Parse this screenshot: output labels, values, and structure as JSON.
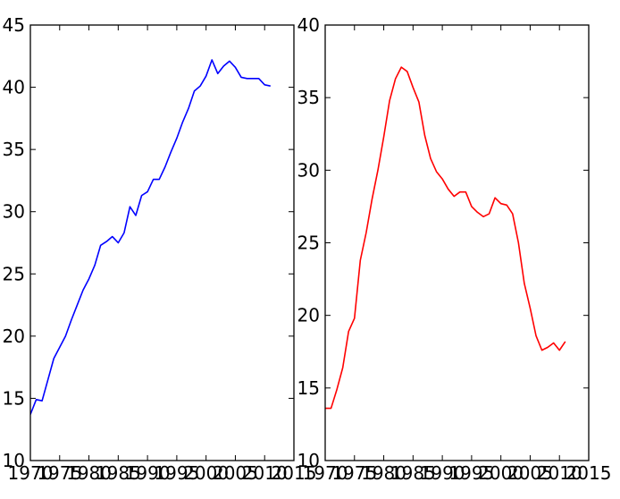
{
  "chart_data": [
    {
      "type": "line",
      "title": "",
      "xlabel": "",
      "ylabel": "",
      "xlim": [
        1970,
        2015
      ],
      "ylim": [
        10,
        45
      ],
      "xticks": [
        1970,
        1975,
        1980,
        1985,
        1990,
        1995,
        2000,
        2005,
        2010,
        2015
      ],
      "yticks": [
        10,
        15,
        20,
        25,
        30,
        35,
        40,
        45
      ],
      "grid": false,
      "series": [
        {
          "color": "#0000ff",
          "x": [
            1970,
            1971,
            1972,
            1973,
            1974,
            1975,
            1976,
            1977,
            1978,
            1979,
            1980,
            1981,
            1982,
            1983,
            1984,
            1985,
            1986,
            1987,
            1988,
            1989,
            1990,
            1991,
            1992,
            1993,
            1994,
            1995,
            1996,
            1997,
            1998,
            1999,
            2000,
            2001,
            2002,
            2003,
            2004,
            2005,
            2006,
            2007,
            2008,
            2009,
            2010,
            2011
          ],
          "y": [
            13.7,
            14.9,
            14.8,
            16.5,
            18.2,
            19.1,
            20.0,
            21.3,
            22.5,
            23.7,
            24.6,
            25.7,
            27.3,
            27.6,
            28.0,
            27.5,
            28.3,
            30.4,
            29.7,
            31.3,
            31.6,
            32.6,
            32.6,
            33.6,
            34.8,
            35.9,
            37.2,
            38.3,
            39.7,
            40.1,
            40.9,
            42.2,
            41.1,
            41.7,
            42.1,
            41.6,
            40.8,
            40.7,
            40.7,
            40.7,
            40.2,
            40.1
          ]
        }
      ]
    },
    {
      "type": "line",
      "title": "",
      "xlabel": "",
      "ylabel": "",
      "xlim": [
        1970,
        2015
      ],
      "ylim": [
        10,
        40
      ],
      "xticks": [
        1970,
        1975,
        1980,
        1985,
        1990,
        1995,
        2000,
        2005,
        2010,
        2015
      ],
      "yticks": [
        10,
        15,
        20,
        25,
        30,
        35,
        40
      ],
      "grid": false,
      "series": [
        {
          "color": "#ff0000",
          "x": [
            1970,
            1971,
            1972,
            1973,
            1974,
            1975,
            1976,
            1977,
            1978,
            1979,
            1980,
            1981,
            1982,
            1983,
            1984,
            1985,
            1986,
            1987,
            1988,
            1989,
            1990,
            1991,
            1992,
            1993,
            1994,
            1995,
            1996,
            1997,
            1998,
            1999,
            2000,
            2001,
            2002,
            2003,
            2004,
            2005,
            2006,
            2007,
            2008,
            2009,
            2010,
            2011
          ],
          "y": [
            13.6,
            13.6,
            14.9,
            16.4,
            18.9,
            19.8,
            23.8,
            25.7,
            28.0,
            30.0,
            32.3,
            34.8,
            36.3,
            37.1,
            36.8,
            35.7,
            34.7,
            32.4,
            30.8,
            29.9,
            29.4,
            28.7,
            28.2,
            28.5,
            28.5,
            27.5,
            27.1,
            26.8,
            27.0,
            28.1,
            27.7,
            27.6,
            27.0,
            25.0,
            22.2,
            20.5,
            18.6,
            17.6,
            17.8,
            18.1,
            17.6,
            18.2
          ]
        }
      ]
    }
  ]
}
